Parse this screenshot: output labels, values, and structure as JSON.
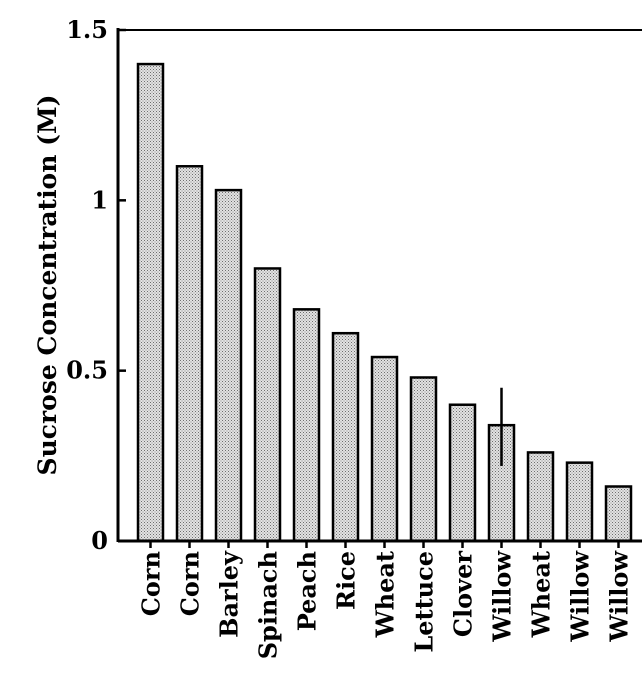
{
  "chart_data": {
    "type": "bar",
    "title": "",
    "xlabel": "",
    "ylabel": "Sucrose Concentration (M)",
    "ylim": [
      0,
      1.5
    ],
    "yticks": [
      {
        "value": 0,
        "label": "0"
      },
      {
        "value": 0.5,
        "label": "0.5"
      },
      {
        "value": 1,
        "label": "1"
      },
      {
        "value": 1.5,
        "label": "1.5"
      }
    ],
    "categories": [
      "Corn",
      "Corn",
      "Barley",
      "Spinach",
      "Peach",
      "Rice",
      "Wheat",
      "Lettuce",
      "Clover",
      "Willow",
      "Wheat",
      "Willow",
      "Willow"
    ],
    "values": [
      1.4,
      1.1,
      1.03,
      0.8,
      0.68,
      0.61,
      0.54,
      0.48,
      0.4,
      0.34,
      0.26,
      0.23,
      0.16
    ],
    "error_bars": [
      null,
      null,
      null,
      null,
      null,
      null,
      null,
      null,
      null,
      {
        "low": 0.22,
        "high": 0.45
      },
      null,
      null,
      null
    ],
    "grid": false,
    "legend": "none",
    "colors": {
      "bar_fill": "#c9c9c9",
      "bar_stroke": "#000000",
      "axis": "#000000"
    }
  }
}
